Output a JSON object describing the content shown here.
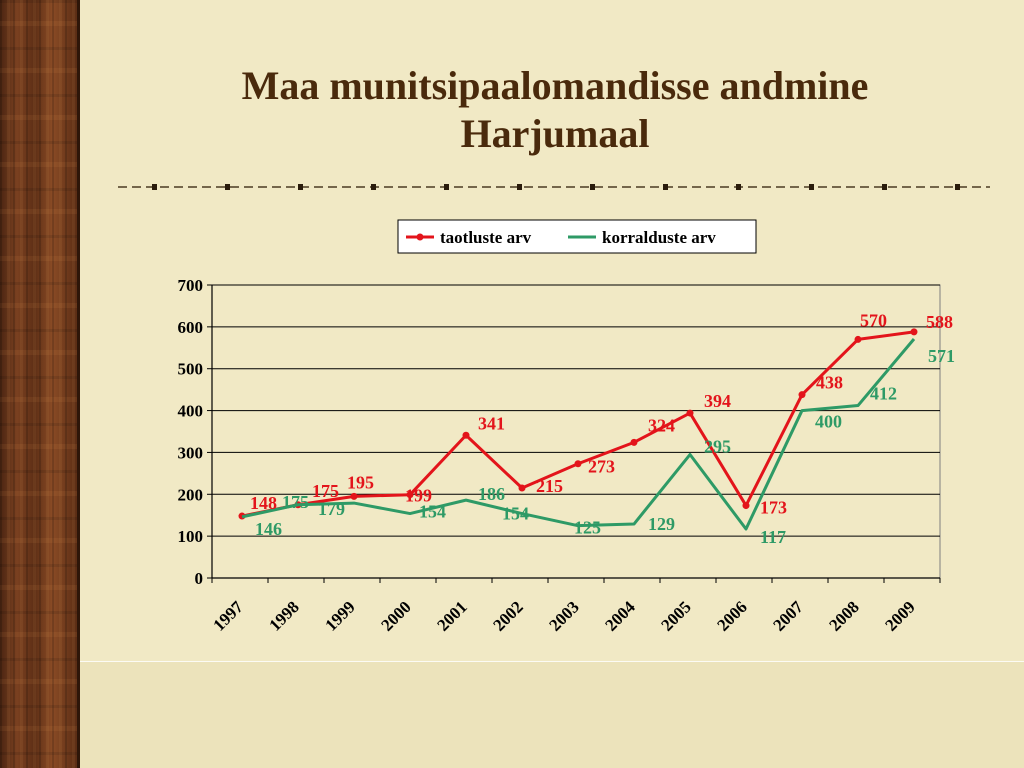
{
  "slide": {
    "title_line1": "Maa munitsipaalomandisse andmine",
    "title_line2": "Harjumaal"
  },
  "colors": {
    "background": "#f1e9c5",
    "title": "#4a2a0c",
    "series_red": "#e3141b",
    "series_green": "#2e9a66"
  },
  "chart_data": {
    "type": "line",
    "title": "",
    "xlabel": "",
    "ylabel": "",
    "categories": [
      "1997",
      "1998",
      "1999",
      "2000",
      "2001",
      "2002",
      "2003",
      "2004",
      "2005",
      "2006",
      "2007",
      "2008",
      "2009"
    ],
    "ylim": [
      0,
      700
    ],
    "yticks": [
      0,
      100,
      200,
      300,
      400,
      500,
      600,
      700
    ],
    "grid": true,
    "legend": "top-center",
    "series": [
      {
        "name": "taotluste arv",
        "color": "#e3141b",
        "marker": "circle",
        "values": [
          148,
          175,
          195,
          199,
          341,
          215,
          273,
          324,
          394,
          173,
          438,
          570,
          588
        ]
      },
      {
        "name": "korralduste arv",
        "color": "#2e9a66",
        "marker": "none",
        "values": [
          146,
          175,
          179,
          154,
          186,
          154,
          125,
          129,
          295,
          117,
          400,
          412,
          571
        ]
      }
    ]
  }
}
